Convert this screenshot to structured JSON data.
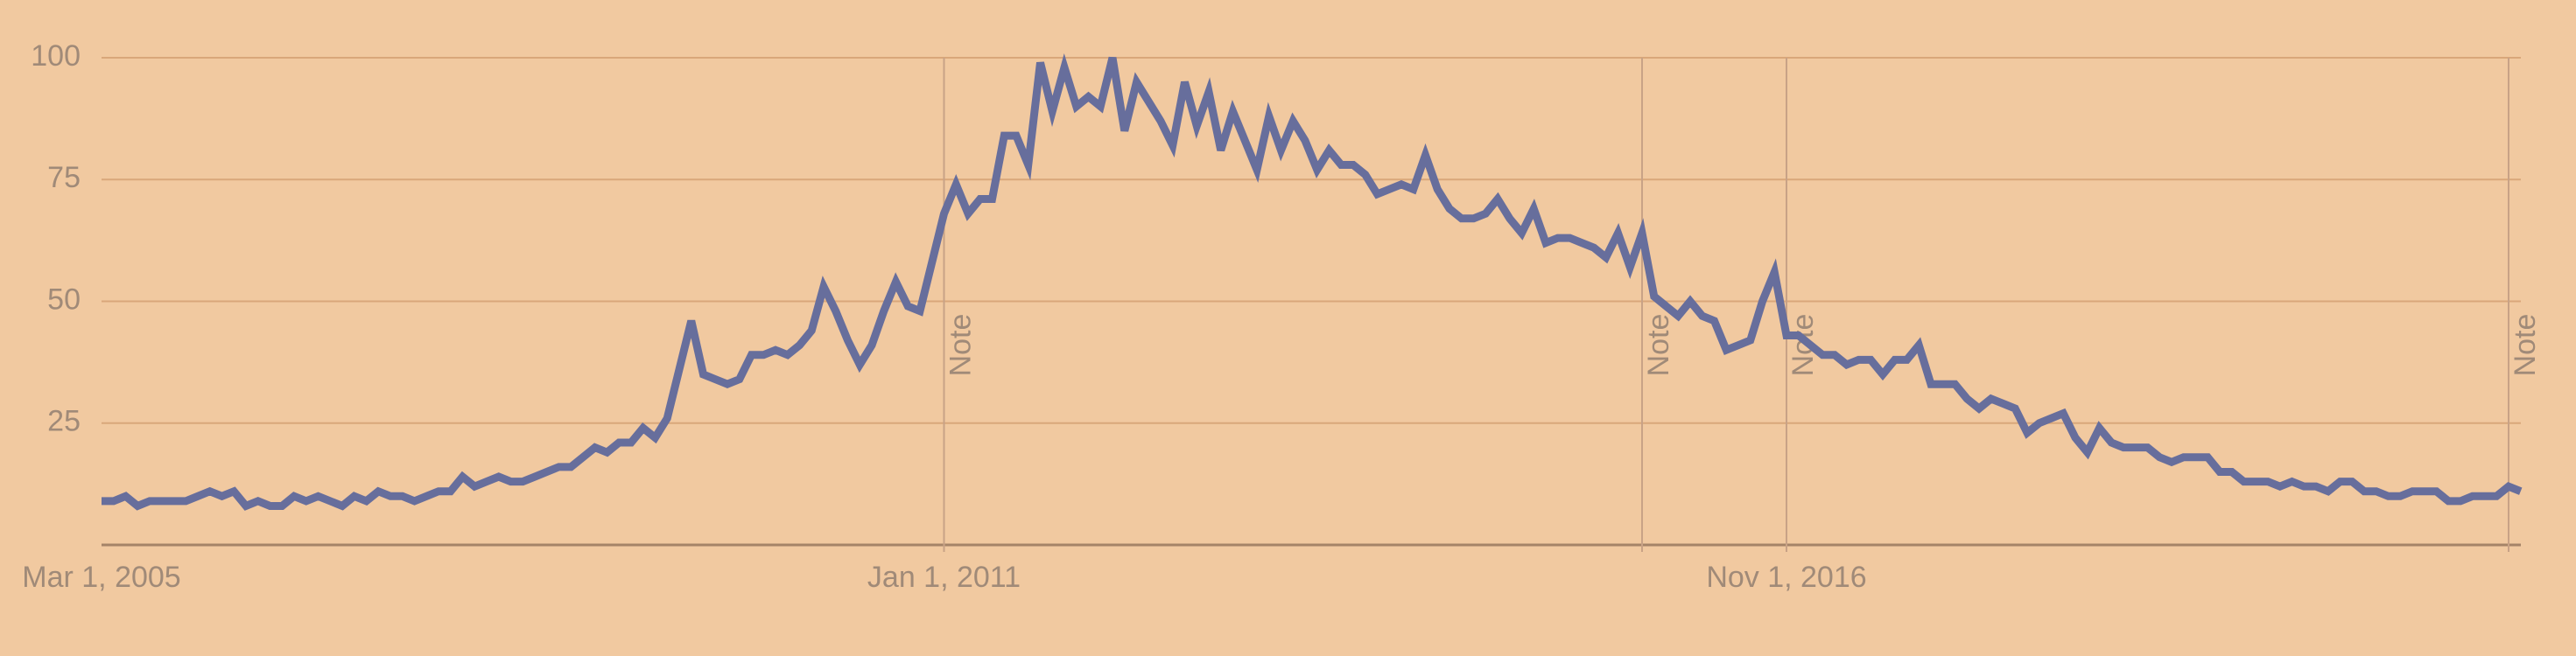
{
  "chart_data": {
    "type": "line",
    "categories": [
      "Mar 1, 2005",
      null,
      null,
      null,
      null,
      null,
      null,
      null,
      null,
      null,
      null,
      null,
      null,
      null,
      null,
      null,
      null,
      null,
      null,
      null,
      null,
      null,
      null,
      null,
      null,
      null,
      null,
      null,
      null,
      null,
      null,
      null,
      null,
      null,
      null,
      null,
      null,
      null,
      null,
      null,
      null,
      null,
      null,
      null,
      null,
      null,
      null,
      null,
      null,
      null,
      null,
      null,
      null,
      null,
      null,
      null,
      null,
      null,
      null,
      null,
      null,
      null,
      null,
      null,
      null,
      null,
      null,
      null,
      null,
      null,
      "Jan 1, 2011",
      null,
      null,
      null,
      null,
      null,
      null,
      null,
      null,
      null,
      null,
      null,
      null,
      null,
      null,
      null,
      null,
      null,
      null,
      null,
      null,
      null,
      null,
      null,
      null,
      null,
      null,
      null,
      null,
      null,
      null,
      null,
      null,
      null,
      null,
      null,
      null,
      null,
      null,
      null,
      null,
      null,
      null,
      null,
      null,
      null,
      null,
      null,
      null,
      null,
      null,
      null,
      null,
      null,
      null,
      null,
      null,
      null,
      null,
      null,
      null,
      null,
      null,
      null,
      null,
      null,
      null,
      null,
      null,
      null,
      "Nov 1, 2016",
      null,
      null,
      null,
      null,
      null,
      null,
      null,
      null,
      null,
      null,
      null,
      null,
      null,
      null,
      null,
      null,
      null,
      null,
      null,
      null,
      null,
      null,
      null,
      null,
      null,
      null,
      null,
      null,
      null,
      null,
      null,
      null,
      null,
      null,
      null,
      null,
      null,
      null,
      null,
      null,
      null,
      null,
      null,
      null,
      null,
      null,
      null,
      null,
      null,
      null,
      null,
      null,
      null,
      null,
      null,
      null,
      null,
      null,
      null,
      null,
      null
    ],
    "series": [
      {
        "color": "#676e9c",
        "values": [
          9,
          9,
          10,
          8,
          9,
          9,
          9,
          9,
          10,
          11,
          10,
          11,
          8,
          9,
          8,
          8,
          10,
          9,
          10,
          9,
          8,
          10,
          9,
          11,
          10,
          10,
          9,
          10,
          11,
          11,
          14,
          12,
          13,
          14,
          13,
          13,
          14,
          15,
          16,
          16,
          18,
          20,
          19,
          21,
          21,
          24,
          22,
          26,
          36,
          46,
          35,
          34,
          33,
          34,
          39,
          39,
          40,
          39,
          41,
          44,
          53,
          48,
          42,
          37,
          41,
          48,
          54,
          49,
          48,
          58,
          68,
          74,
          68,
          71,
          71,
          84,
          84,
          78,
          99,
          89,
          98,
          90,
          92,
          90,
          100,
          85,
          95,
          91,
          87,
          82,
          95,
          86,
          93,
          81,
          89,
          83,
          77,
          88,
          81,
          87,
          83,
          77,
          81,
          78,
          78,
          76,
          72,
          73,
          74,
          73,
          80,
          73,
          69,
          67,
          67,
          68,
          71,
          67,
          64,
          69,
          62,
          63,
          63,
          62,
          61,
          59,
          64,
          57,
          64,
          51,
          49,
          47,
          50,
          47,
          46,
          40,
          41,
          42,
          50,
          56,
          43,
          43,
          41,
          39,
          39,
          37,
          38,
          38,
          35,
          38,
          38,
          41,
          33,
          33,
          33,
          30,
          28,
          30,
          29,
          28,
          23,
          25,
          26,
          27,
          22,
          19,
          24,
          21,
          20,
          20,
          20,
          18,
          17,
          18,
          18,
          18,
          15,
          15,
          13,
          13,
          13,
          12,
          13,
          12,
          12,
          11,
          13,
          13,
          11,
          11,
          10,
          10,
          11,
          11,
          11,
          9,
          9,
          10,
          10,
          10,
          12,
          11
        ]
      }
    ],
    "ylim": [
      0,
      100
    ],
    "yticks": [
      25,
      50,
      75,
      100
    ],
    "grid": true,
    "annotations": [
      {
        "x": 70,
        "label": "Note"
      },
      {
        "x": 128,
        "label": "Note"
      },
      {
        "x": 140,
        "label": "Note"
      },
      {
        "x": 200,
        "label": "Note"
      }
    ]
  }
}
